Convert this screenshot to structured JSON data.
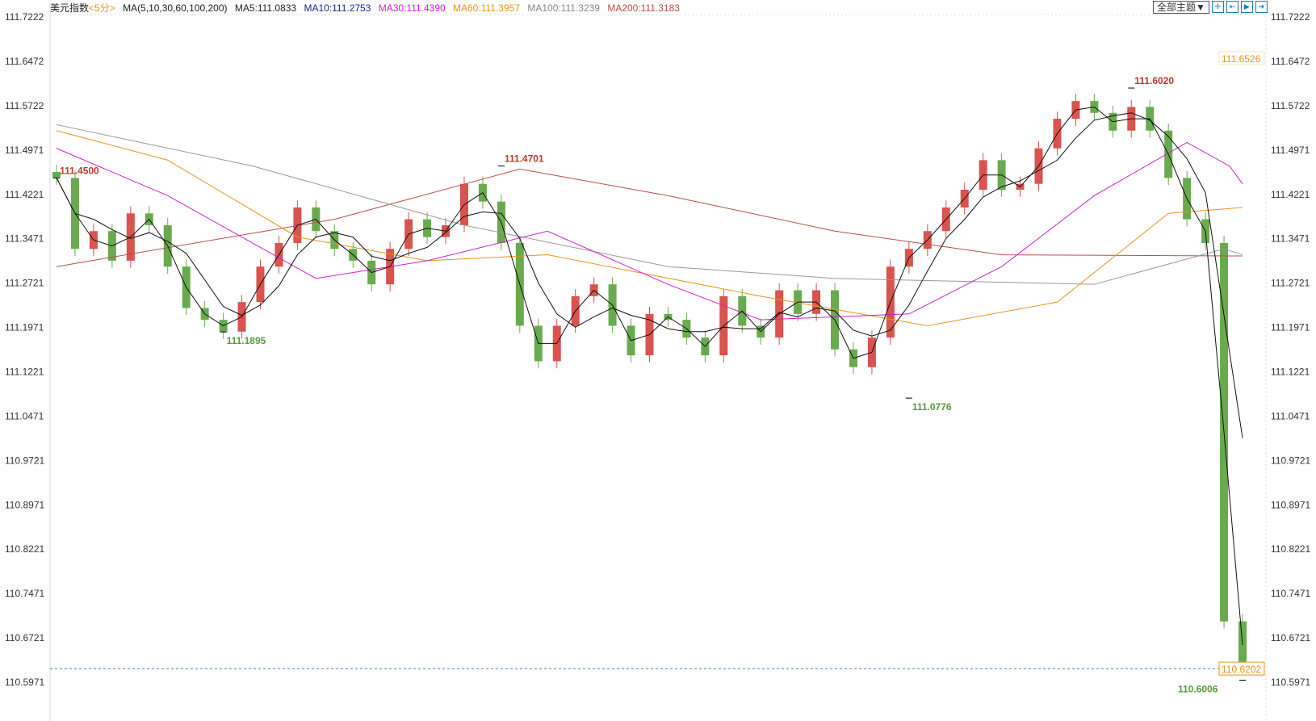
{
  "header": {
    "symbol": "美元指数",
    "period": "<5分>",
    "ma_params": "MA(5,10,30,60,100,200)",
    "ma5": "MA5:111.0833",
    "ma10": "MA10:111.2753",
    "ma30": "MA30:111.4390",
    "ma60": "MA60:111.3957",
    "ma100": "MA100:111.3239",
    "ma200": "MA200:111.3183"
  },
  "toolbar": {
    "theme_label": "全部主题▼",
    "icons": [
      "crosshair-icon",
      "zoom-range-icon",
      "play-icon",
      "exit-icon"
    ]
  },
  "colors": {
    "up": "#d9534f",
    "down": "#6aaa4f",
    "ma5": "#111111",
    "ma10": "#111111",
    "ma30": "#d020d0",
    "ma60": "#e8951a",
    "ma100": "#999999",
    "ma200": "#b5504a"
  },
  "chart_data": {
    "type": "candlestick",
    "ylim": [
      110.5971,
      111.7222
    ],
    "yticks": [
      "111.7222",
      "111.6472",
      "111.5722",
      "111.4971",
      "111.4221",
      "111.3471",
      "111.2721",
      "111.1971",
      "111.1221",
      "111.0471",
      "110.9721",
      "110.8971",
      "110.8221",
      "110.7471",
      "110.6721",
      "110.5971"
    ],
    "closes": [
      111.45,
      111.33,
      111.36,
      111.31,
      111.39,
      111.37,
      111.3,
      111.23,
      111.21,
      111.19,
      111.24,
      111.3,
      111.34,
      111.4,
      111.36,
      111.33,
      111.31,
      111.27,
      111.33,
      111.38,
      111.35,
      111.37,
      111.44,
      111.41,
      111.34,
      111.2,
      111.14,
      111.2,
      111.25,
      111.27,
      111.2,
      111.15,
      111.22,
      111.21,
      111.18,
      111.15,
      111.25,
      111.2,
      111.18,
      111.26,
      111.22,
      111.26,
      111.16,
      111.13,
      111.18,
      111.3,
      111.33,
      111.36,
      111.4,
      111.43,
      111.48,
      111.43,
      111.44,
      111.5,
      111.55,
      111.58,
      111.56,
      111.53,
      111.57,
      111.53,
      111.45,
      111.38,
      111.34,
      110.7,
      110.62
    ],
    "ma_lines": {
      "ma30": [
        [
          0,
          111.5
        ],
        [
          6,
          111.42
        ],
        [
          14,
          111.28
        ],
        [
          20,
          111.31
        ],
        [
          26.5,
          111.36
        ],
        [
          33,
          111.27
        ],
        [
          38,
          111.21
        ],
        [
          46,
          111.22
        ],
        [
          51,
          111.3
        ],
        [
          56,
          111.42
        ],
        [
          61,
          111.51
        ],
        [
          63.3,
          111.47
        ],
        [
          64,
          111.44
        ]
      ],
      "ma60": [
        [
          0,
          111.53
        ],
        [
          6,
          111.48
        ],
        [
          13,
          111.35
        ],
        [
          20,
          111.31
        ],
        [
          26.5,
          111.32
        ],
        [
          38,
          111.25
        ],
        [
          47,
          111.2
        ],
        [
          54,
          111.24
        ],
        [
          60,
          111.39
        ],
        [
          64,
          111.4
        ]
      ],
      "ma100": [
        [
          0,
          111.54
        ],
        [
          10.6,
          111.47
        ],
        [
          22,
          111.37
        ],
        [
          33,
          111.3
        ],
        [
          42,
          111.28
        ],
        [
          56,
          111.27
        ],
        [
          63,
          111.33
        ],
        [
          64,
          111.32
        ]
      ],
      "ma200": [
        [
          0,
          111.3
        ],
        [
          15,
          111.38
        ],
        [
          25,
          111.465
        ],
        [
          33,
          111.42
        ],
        [
          42,
          111.36
        ],
        [
          51,
          111.32
        ],
        [
          64,
          111.318
        ]
      ]
    },
    "annotations": [
      {
        "label": "111.4500",
        "index": 0,
        "price": 111.45,
        "color": "up"
      },
      {
        "label": "111.1895",
        "index": 9,
        "price": 111.1895,
        "color": "down"
      },
      {
        "label": "111.4701",
        "index": 24,
        "price": 111.4701,
        "color": "up"
      },
      {
        "label": "111.0776",
        "index": 46,
        "price": 111.0776,
        "color": "down"
      },
      {
        "label": "111.6020",
        "index": 58,
        "price": 111.602,
        "color": "up"
      },
      {
        "label": "110.6006",
        "index": 64,
        "price": 110.6006,
        "color": "down"
      }
    ],
    "last_price": "110.6202",
    "price_tag": "111.6526"
  }
}
